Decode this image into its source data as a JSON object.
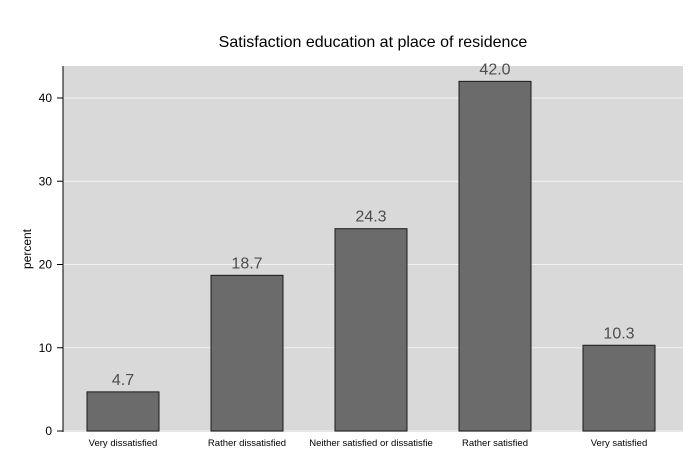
{
  "chart_data": {
    "type": "bar",
    "title": "Satisfaction education at place of residence",
    "xlabel": "",
    "ylabel": "percent",
    "categories": [
      "Very dissatisfied",
      "Rather dissatisfied",
      "Neither satisfied or dissatisfie",
      "Rather satisfied",
      "Very satisfied"
    ],
    "values": [
      4.7,
      18.7,
      24.3,
      42.0,
      10.3
    ],
    "value_labels": [
      "4.7",
      "18.7",
      "24.3",
      "42.0",
      "10.3"
    ],
    "yticks": [
      0,
      10,
      20,
      30,
      40
    ],
    "ylim": [
      0,
      44
    ],
    "grid": true,
    "colors": {
      "panel": "#d9d9d9",
      "bar": "#6b6b6b",
      "bar_outline": "#1a1a1a",
      "grid": "#f2f2f2",
      "data_label": "#4d4d4d"
    }
  }
}
